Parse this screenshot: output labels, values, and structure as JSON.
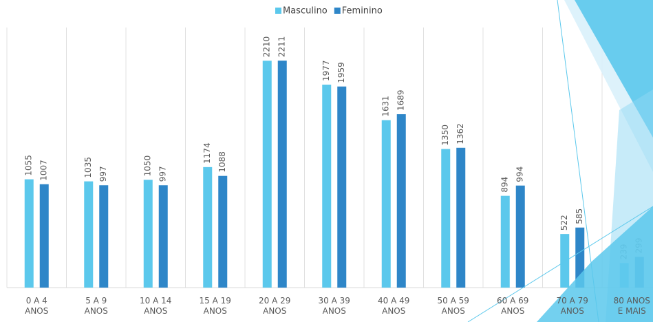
{
  "chart_data": {
    "type": "bar",
    "categories": [
      "0 A 4 ANOS",
      "5 A 9 ANOS",
      "10 A 14 ANOS",
      "15 A 19 ANOS",
      "20 A 29 ANOS",
      "30 A 39 ANOS",
      "40 A 49 ANOS",
      "50 A 59 ANOS",
      "60 A 69 ANOS",
      "70 A 79 ANOS",
      "80 ANOS E MAIS"
    ],
    "series": [
      {
        "name": "Masculino",
        "color": "#5bc8ec",
        "values": [
          1055,
          1035,
          1050,
          1174,
          2210,
          1977,
          1631,
          1350,
          894,
          522,
          239
        ]
      },
      {
        "name": "Feminino",
        "color": "#2e86c8",
        "values": [
          1007,
          997,
          997,
          1088,
          2211,
          1959,
          1689,
          1362,
          994,
          585,
          299
        ]
      }
    ],
    "ylim": [
      0,
      2500
    ],
    "legend": "top"
  }
}
